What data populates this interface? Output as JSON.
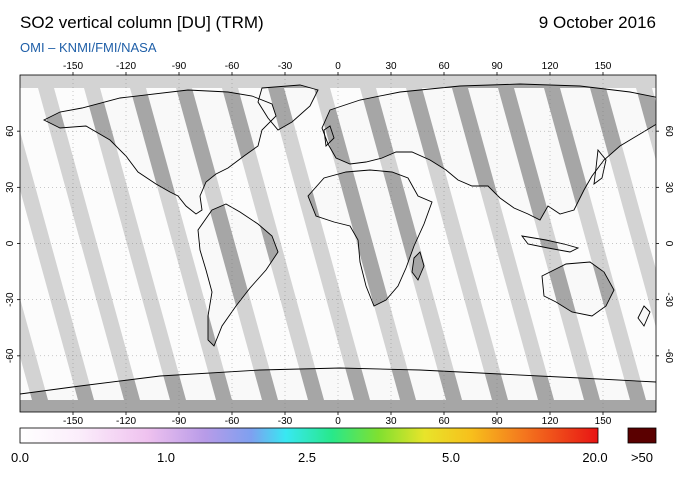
{
  "header": {
    "title": "SO2 vertical column [DU] (TRM)",
    "date": "9 October 2016",
    "source": "OMI  –  KNMI/FMI/NASA"
  },
  "map": {
    "projection": "equirectangular",
    "lon_range": [
      -180,
      180
    ],
    "lat_range": [
      -90,
      90
    ],
    "lon_ticks": [
      "-150",
      "-120",
      "-90",
      "-60",
      "-30",
      "0",
      "30",
      "60",
      "90",
      "120",
      "150"
    ],
    "lat_ticks": [
      "60",
      "30",
      "0",
      "-30",
      "-60"
    ],
    "colors": {
      "land": "#a6a6a6",
      "ocean": "#d3d3d3",
      "swath": "#ffffff",
      "coast": "#000000"
    }
  },
  "colorbar": {
    "labels": [
      "0.0",
      "1.0",
      "2.5",
      "5.0",
      "20.0",
      ">50"
    ],
    "overflow_color": "#5a0000"
  }
}
